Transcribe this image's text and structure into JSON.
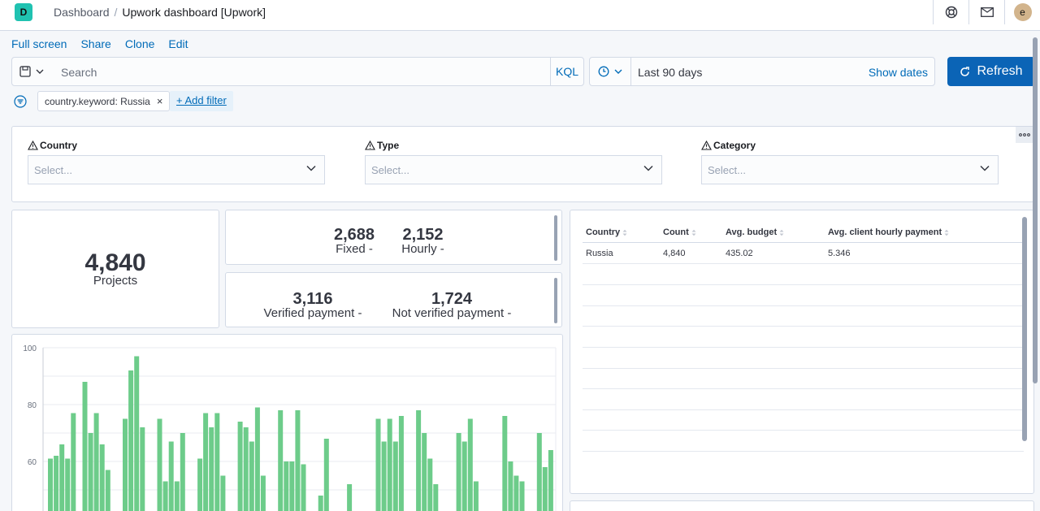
{
  "header": {
    "app_initial": "D",
    "crumb_dashboard": "Dashboard",
    "crumb_current": "Upwork dashboard [Upwork]",
    "user_initial": "e"
  },
  "nav": {
    "full_screen": "Full screen",
    "share": "Share",
    "clone": "Clone",
    "edit": "Edit"
  },
  "query": {
    "placeholder": "Search",
    "language": "KQL",
    "time_range": "Last 90 days",
    "show_dates": "Show dates",
    "refresh": "Refresh"
  },
  "filters": {
    "pill": "country.keyword: Russia",
    "remove_glyph": "×",
    "add_filter": "+ Add filter"
  },
  "controls": [
    {
      "label": "Country",
      "placeholder": "Select..."
    },
    {
      "label": "Type",
      "placeholder": "Select..."
    },
    {
      "label": "Category",
      "placeholder": "Select..."
    }
  ],
  "metrics": {
    "projects": {
      "value": "4,840",
      "label": "Projects"
    },
    "fixed": {
      "value": "2,688",
      "label": "Fixed -"
    },
    "hourly": {
      "value": "2,152",
      "label": "Hourly -"
    },
    "verified": {
      "value": "3,116",
      "label": "Verified payment -"
    },
    "not_verified": {
      "value": "1,724",
      "label": "Not verified payment -"
    }
  },
  "table": {
    "columns": [
      "Country",
      "Count",
      "Avg. budget",
      "Avg. client hourly payment"
    ],
    "rows": [
      [
        "Russia",
        "4,840",
        "435.02",
        "5.346"
      ]
    ]
  },
  "colors": {
    "accent": "#006bb8",
    "refresh_bg": "#0b64b6",
    "bar": "#6dcc8a",
    "app_badge": "#20c2b1"
  },
  "chart_data": {
    "type": "bar",
    "yticks": [
      "100",
      "80",
      "60"
    ],
    "ylim": [
      45,
      100
    ],
    "values": [
      61,
      62,
      66,
      61,
      77,
      null,
      88,
      70,
      77,
      66,
      57,
      null,
      null,
      75,
      92,
      97,
      72,
      null,
      null,
      75,
      53,
      67,
      53,
      70,
      null,
      null,
      61,
      77,
      72,
      77,
      55,
      null,
      null,
      74,
      72,
      67,
      79,
      55,
      null,
      null,
      78,
      60,
      60,
      78,
      59,
      null,
      null,
      48,
      68,
      null,
      null,
      null,
      52,
      null,
      null,
      null,
      null,
      75,
      67,
      75,
      67,
      76,
      null,
      null,
      78,
      70,
      61,
      52,
      null,
      null,
      null,
      70,
      67,
      75,
      53,
      null,
      null,
      null,
      null,
      76,
      60,
      55,
      53,
      null,
      null,
      70,
      58,
      64
    ]
  }
}
